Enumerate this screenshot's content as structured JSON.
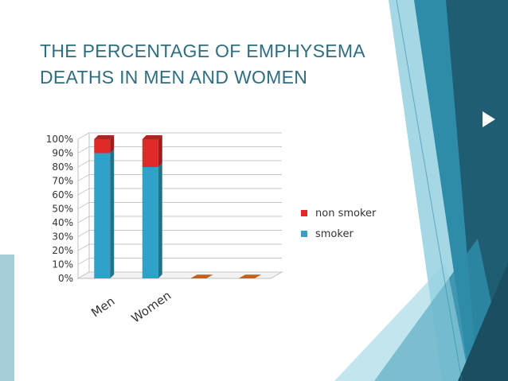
{
  "slide": {
    "title_line1": "THE PERCENTAGE OF EMPHYSEMA",
    "title_line2": "DEATHS IN MEN AND WOMEN"
  },
  "colors": {
    "title": "#2f6e80",
    "smoker": "#2ea3c7",
    "non_smoker": "#e02a2a",
    "empty_bar": "#c0621e",
    "teal_dark": "#1f5d73",
    "teal_mid": "#2e8ca8",
    "teal_light": "#7fc6da"
  },
  "chart_data": {
    "type": "bar",
    "stacked": true,
    "percent_axis": true,
    "categories": [
      "Men",
      "Women",
      "",
      ""
    ],
    "series": [
      {
        "name": "smoker",
        "color": "#2ea3c7",
        "values": [
          90,
          80,
          0,
          0
        ]
      },
      {
        "name": "non smoker",
        "color": "#e02a2a",
        "values": [
          10,
          20,
          0,
          0
        ]
      }
    ],
    "yticks": [
      "0%",
      "10%",
      "20%",
      "30%",
      "40%",
      "50%",
      "60%",
      "70%",
      "80%",
      "90%",
      "100%"
    ],
    "ylim": [
      0,
      100
    ],
    "grid": true,
    "legend_position": "right",
    "three_d": true
  }
}
